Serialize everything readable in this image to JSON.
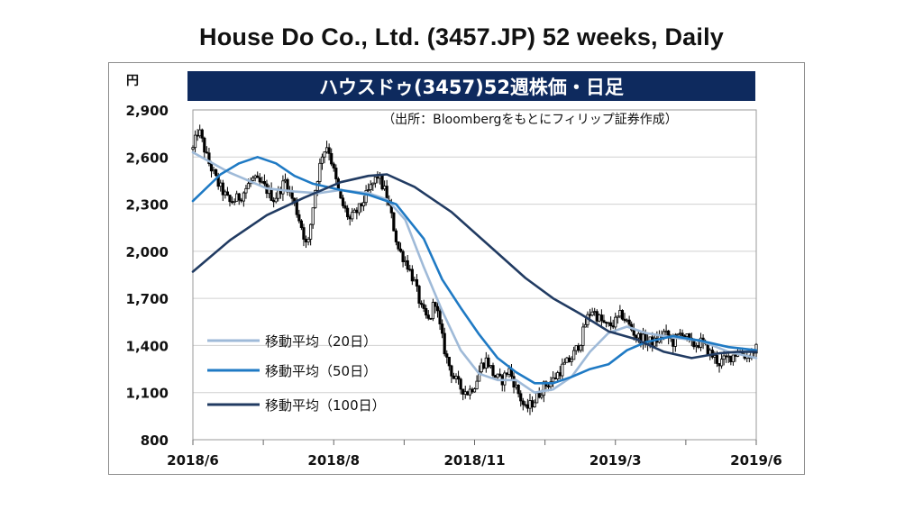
{
  "page": {
    "title": "House Do Co., Ltd. (3457.JP) 52 weeks, Daily"
  },
  "chart_data": {
    "type": "candlestick",
    "title": "ハウスドゥ(3457)52週株価・日足",
    "source_note": "（出所：Bloombergをもとにフィリップ証券作成）",
    "y_unit": "円",
    "ylim": [
      800,
      2900
    ],
    "yticks": [
      800,
      1100,
      1400,
      1700,
      2000,
      2300,
      2600,
      2900
    ],
    "ytick_labels": [
      "800",
      "1,100",
      "1,400",
      "1,700",
      "2,000",
      "2,300",
      "2,600",
      "2,900"
    ],
    "xtick_labels": [
      "2018/6",
      "2018/8",
      "2018/11",
      "2019/3",
      "2019/6"
    ],
    "grid": true,
    "legend_position": "lower-left",
    "colors": {
      "banner_bg": "#0e2a5e",
      "candle": "#000000",
      "ma20": "#9fbad8",
      "ma50": "#1f7ac4",
      "ma100": "#213b62"
    },
    "price_path": [
      [
        0,
        2650
      ],
      [
        3,
        2780
      ],
      [
        8,
        2580
      ],
      [
        14,
        2420
      ],
      [
        20,
        2310
      ],
      [
        26,
        2350
      ],
      [
        32,
        2460
      ],
      [
        38,
        2420
      ],
      [
        44,
        2330
      ],
      [
        50,
        2450
      ],
      [
        55,
        2300
      ],
      [
        59,
        2150
      ],
      [
        62,
        2010
      ],
      [
        66,
        2380
      ],
      [
        70,
        2620
      ],
      [
        73,
        2680
      ],
      [
        76,
        2520
      ],
      [
        80,
        2320
      ],
      [
        85,
        2200
      ],
      [
        90,
        2270
      ],
      [
        95,
        2380
      ],
      [
        100,
        2480
      ],
      [
        104,
        2380
      ],
      [
        107,
        2250
      ],
      [
        111,
        2020
      ],
      [
        116,
        1920
      ],
      [
        120,
        1800
      ],
      [
        124,
        1620
      ],
      [
        128,
        1550
      ],
      [
        131,
        1700
      ],
      [
        134,
        1500
      ],
      [
        137,
        1330
      ],
      [
        141,
        1200
      ],
      [
        145,
        1130
      ],
      [
        149,
        1100
      ],
      [
        153,
        1160
      ],
      [
        156,
        1270
      ],
      [
        159,
        1310
      ],
      [
        163,
        1210
      ],
      [
        167,
        1170
      ],
      [
        171,
        1250
      ],
      [
        175,
        1130
      ],
      [
        180,
        990
      ],
      [
        185,
        1050
      ],
      [
        190,
        1140
      ],
      [
        195,
        1180
      ],
      [
        200,
        1260
      ],
      [
        205,
        1320
      ],
      [
        210,
        1430
      ],
      [
        213,
        1560
      ],
      [
        216,
        1630
      ],
      [
        220,
        1570
      ],
      [
        224,
        1520
      ],
      [
        228,
        1540
      ],
      [
        232,
        1600
      ],
      [
        236,
        1530
      ],
      [
        240,
        1460
      ],
      [
        245,
        1430
      ],
      [
        250,
        1420
      ],
      [
        255,
        1480
      ],
      [
        260,
        1420
      ],
      [
        265,
        1490
      ],
      [
        270,
        1400
      ],
      [
        275,
        1420
      ],
      [
        280,
        1350
      ],
      [
        285,
        1290
      ],
      [
        290,
        1320
      ],
      [
        295,
        1360
      ],
      [
        300,
        1330
      ],
      [
        305,
        1380
      ]
    ],
    "series": [
      {
        "name": "移動平均（20日）",
        "points": [
          [
            0,
            2630
          ],
          [
            20,
            2500
          ],
          [
            40,
            2400
          ],
          [
            55,
            2380
          ],
          [
            68,
            2370
          ],
          [
            80,
            2390
          ],
          [
            95,
            2370
          ],
          [
            105,
            2330
          ],
          [
            115,
            2200
          ],
          [
            125,
            1900
          ],
          [
            135,
            1620
          ],
          [
            145,
            1370
          ],
          [
            155,
            1220
          ],
          [
            165,
            1180
          ],
          [
            175,
            1180
          ],
          [
            185,
            1100
          ],
          [
            195,
            1120
          ],
          [
            205,
            1200
          ],
          [
            215,
            1360
          ],
          [
            225,
            1480
          ],
          [
            235,
            1520
          ],
          [
            245,
            1480
          ],
          [
            260,
            1450
          ],
          [
            275,
            1430
          ],
          [
            290,
            1360
          ],
          [
            305,
            1320
          ]
        ]
      },
      {
        "name": "移動平均（50日）",
        "points": [
          [
            0,
            2320
          ],
          [
            15,
            2490
          ],
          [
            25,
            2560
          ],
          [
            35,
            2600
          ],
          [
            45,
            2560
          ],
          [
            55,
            2480
          ],
          [
            65,
            2430
          ],
          [
            80,
            2390
          ],
          [
            95,
            2360
          ],
          [
            110,
            2300
          ],
          [
            125,
            2080
          ],
          [
            135,
            1820
          ],
          [
            145,
            1640
          ],
          [
            155,
            1470
          ],
          [
            165,
            1320
          ],
          [
            175,
            1230
          ],
          [
            185,
            1160
          ],
          [
            195,
            1160
          ],
          [
            205,
            1200
          ],
          [
            215,
            1250
          ],
          [
            225,
            1280
          ],
          [
            235,
            1370
          ],
          [
            245,
            1420
          ],
          [
            260,
            1460
          ],
          [
            275,
            1430
          ],
          [
            290,
            1390
          ],
          [
            305,
            1370
          ]
        ]
      },
      {
        "name": "移動平均（100日）",
        "points": [
          [
            0,
            1870
          ],
          [
            20,
            2070
          ],
          [
            40,
            2230
          ],
          [
            60,
            2340
          ],
          [
            80,
            2440
          ],
          [
            95,
            2480
          ],
          [
            105,
            2490
          ],
          [
            120,
            2410
          ],
          [
            140,
            2250
          ],
          [
            160,
            2040
          ],
          [
            180,
            1830
          ],
          [
            195,
            1700
          ],
          [
            210,
            1600
          ],
          [
            225,
            1490
          ],
          [
            240,
            1440
          ],
          [
            255,
            1360
          ],
          [
            270,
            1320
          ],
          [
            285,
            1350
          ],
          [
            295,
            1360
          ],
          [
            305,
            1360
          ]
        ]
      }
    ]
  }
}
